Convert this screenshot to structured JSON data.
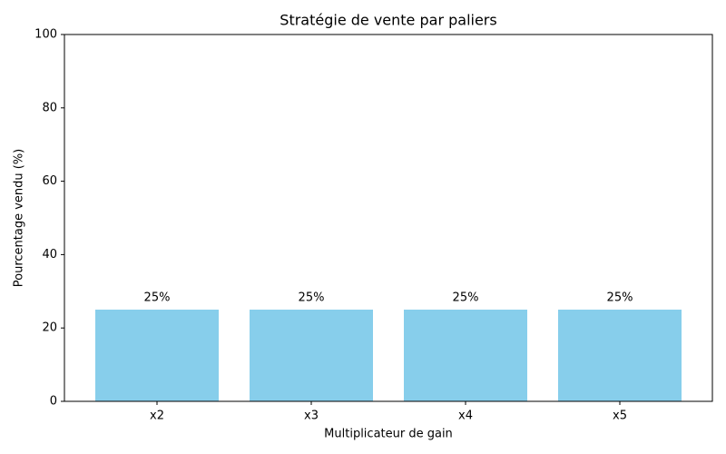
{
  "chart_data": {
    "type": "bar",
    "title": "Stratégie de vente par paliers",
    "x_label": "Multiplicateur de gain",
    "y_label": "Pourcentage vendu (%)",
    "categories": [
      "x2",
      "x3",
      "x4",
      "x5"
    ],
    "values": [
      25,
      25,
      25,
      25
    ],
    "value_labels": [
      "25%",
      "25%",
      "25%",
      "25%"
    ],
    "color": "#87ceeb",
    "ylim": [
      0,
      100
    ],
    "yticks": [
      0,
      20,
      40,
      60,
      80,
      100
    ],
    "grid": false
  }
}
